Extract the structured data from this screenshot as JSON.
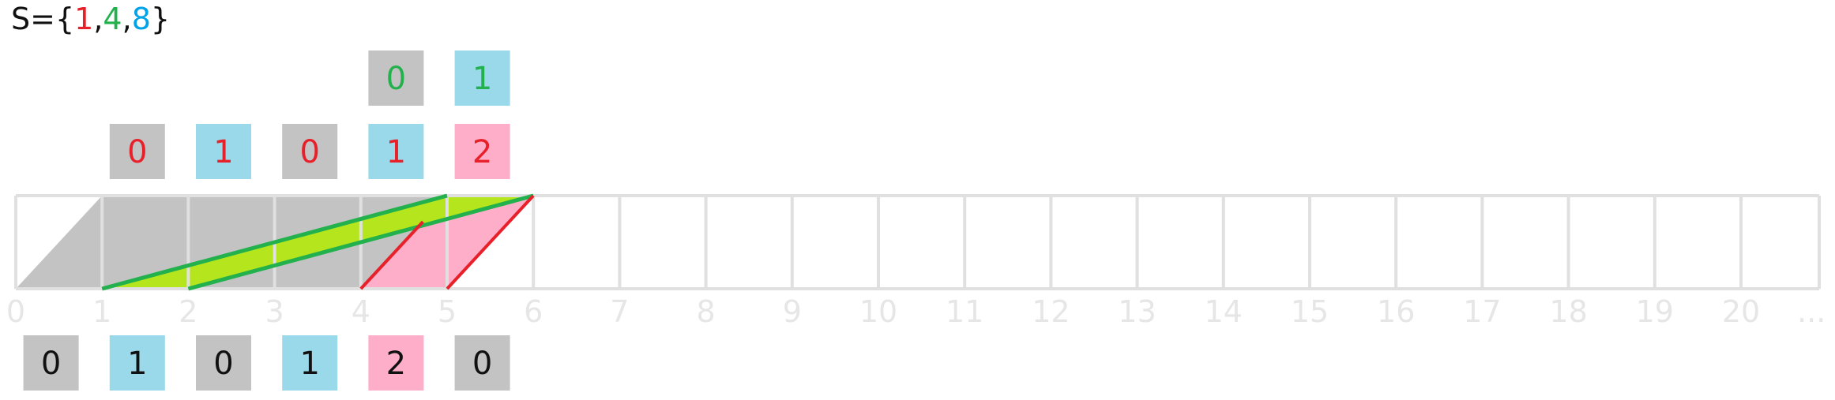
{
  "set_label": {
    "prefix": "S={",
    "items": [
      {
        "text": "1",
        "color": "#e8202a"
      },
      {
        "text": "4",
        "color": "#22b14c"
      },
      {
        "text": "8",
        "color": "#00a2e8"
      }
    ],
    "separator": ",",
    "suffix": "}"
  },
  "number_line": {
    "ticks": [
      "0",
      "1",
      "2",
      "3",
      "4",
      "5",
      "6",
      "7",
      "8",
      "9",
      "10",
      "11",
      "12",
      "13",
      "14",
      "15",
      "16",
      "17",
      "18",
      "19",
      "20",
      "..."
    ]
  },
  "top_row_1": [
    {
      "position": 4,
      "value": "0",
      "bg": "#c3c3c3",
      "color": "#22b14c"
    },
    {
      "position": 5,
      "value": "1",
      "bg": "#99d9ea",
      "color": "#22b14c"
    }
  ],
  "top_row_2": [
    {
      "position": 1,
      "value": "0",
      "bg": "#c3c3c3",
      "color": "#e8202a"
    },
    {
      "position": 2,
      "value": "1",
      "bg": "#99d9ea",
      "color": "#e8202a"
    },
    {
      "position": 3,
      "value": "0",
      "bg": "#c3c3c3",
      "color": "#e8202a"
    },
    {
      "position": 4,
      "value": "1",
      "bg": "#99d9ea",
      "color": "#e8202a"
    },
    {
      "position": 5,
      "value": "2",
      "bg": "#ffaec9",
      "color": "#e8202a"
    }
  ],
  "bottom_row": [
    {
      "position": 0,
      "value": "0",
      "bg": "#c3c3c3",
      "color": "#111111"
    },
    {
      "position": 1,
      "value": "1",
      "bg": "#99d9ea",
      "color": "#111111"
    },
    {
      "position": 2,
      "value": "0",
      "bg": "#c3c3c3",
      "color": "#111111"
    },
    {
      "position": 3,
      "value": "1",
      "bg": "#99d9ea",
      "color": "#111111"
    },
    {
      "position": 4,
      "value": "2",
      "bg": "#ffaec9",
      "color": "#111111"
    },
    {
      "position": 5,
      "value": "0",
      "bg": "#c3c3c3",
      "color": "#111111"
    }
  ],
  "colors": {
    "gray_fill": "#c3c3c3",
    "pink_fill": "#ffaec9",
    "lime_fill": "#b5e61d",
    "green_line": "#22b14c",
    "red_line": "#e8202a",
    "grid": "#e0e0e0",
    "tick_label": "#e6e6e6"
  }
}
